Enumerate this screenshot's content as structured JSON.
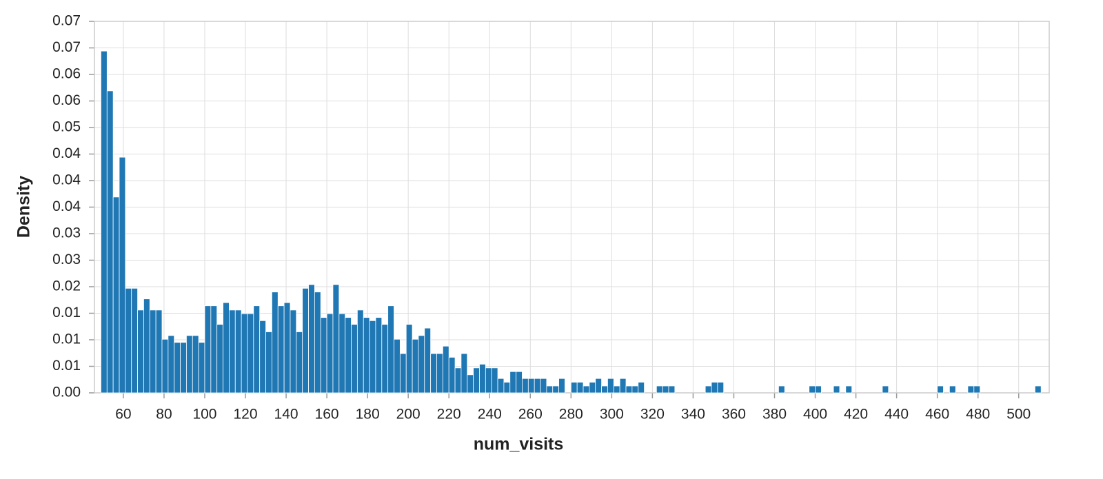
{
  "chart_data": {
    "type": "histogram",
    "x_label": "num_visits",
    "y_label": "Density",
    "color": "#1f77b4",
    "grid": true,
    "xlim": [
      45.8,
      515
    ],
    "ylim": [
      0,
      0.07
    ],
    "xticks": [
      60,
      80,
      100,
      120,
      140,
      160,
      180,
      200,
      220,
      240,
      260,
      280,
      300,
      320,
      340,
      360,
      380,
      400,
      420,
      440,
      460,
      480,
      500
    ],
    "yticks": [
      {
        "value": 0,
        "label": "0.00"
      },
      {
        "value": 0.005,
        "label": "0.01"
      },
      0.01,
      {
        "value": 0.015,
        "label": "0.01"
      },
      0.02,
      {
        "value": 0.025,
        "label": "0.03"
      },
      0.03,
      {
        "value": 0.035,
        "label": "0.04"
      },
      0.04,
      {
        "value": 0.045,
        "label": "0.04"
      },
      0.05,
      {
        "value": 0.055,
        "label": "0.06"
      },
      0.06,
      {
        "value": 0.065,
        "label": "0.07"
      },
      0.07
    ],
    "bins": [
      49,
      52,
      55,
      58,
      61,
      64,
      67,
      70,
      73,
      76,
      79,
      82,
      85,
      88,
      91,
      94,
      97,
      100,
      103,
      106,
      109,
      112,
      115,
      118,
      121,
      124,
      127,
      130,
      133,
      136,
      139,
      142,
      145,
      148,
      151,
      154,
      157,
      160,
      163,
      166,
      169,
      172,
      175,
      178,
      181,
      184,
      187,
      190,
      193,
      196,
      199,
      202,
      205,
      208,
      211,
      214,
      217,
      220,
      223,
      226,
      229,
      232,
      235,
      238,
      241,
      244,
      247,
      250,
      253,
      256,
      259,
      262,
      265,
      268,
      271,
      274,
      277,
      280,
      283,
      286,
      289,
      292,
      295,
      298,
      301,
      304,
      307,
      310,
      313,
      316,
      319,
      322,
      325,
      328,
      331,
      334,
      337,
      340,
      343,
      346,
      349,
      352,
      355,
      358,
      361,
      364,
      367,
      370,
      373,
      376,
      379,
      382,
      385,
      388,
      391,
      394,
      397,
      400,
      403,
      406,
      409,
      412,
      415,
      418,
      421,
      424,
      427,
      430,
      433,
      436,
      439,
      442,
      445,
      448,
      451,
      454,
      457,
      460,
      463,
      466,
      469,
      472,
      475,
      478,
      481,
      484,
      487,
      490,
      493,
      496,
      499,
      502,
      505,
      508,
      511
    ],
    "values": [
      0.0644,
      0.0569,
      0.0369,
      0.0444,
      0.0197,
      0.0197,
      0.0156,
      0.0177,
      0.0156,
      0.0156,
      0.0101,
      0.0108,
      0.0095,
      0.0095,
      0.0108,
      0.0108,
      0.0095,
      0.0164,
      0.0164,
      0.0129,
      0.017,
      0.0156,
      0.0156,
      0.0149,
      0.0149,
      0.0164,
      0.0136,
      0.0115,
      0.019,
      0.0164,
      0.017,
      0.0156,
      0.0115,
      0.0197,
      0.0204,
      0.019,
      0.0142,
      0.0149,
      0.0204,
      0.0149,
      0.0142,
      0.0129,
      0.0156,
      0.0142,
      0.0136,
      0.0142,
      0.0129,
      0.0164,
      0.0101,
      0.0074,
      0.0129,
      0.0101,
      0.0108,
      0.0122,
      0.0074,
      0.0074,
      0.0088,
      0.0067,
      0.0047,
      0.0074,
      0.0034,
      0.0047,
      0.0054,
      0.0047,
      0.0047,
      0.0027,
      0.002,
      0.004,
      0.004,
      0.0027,
      0.0027,
      0.0027,
      0.0027,
      0.0013,
      0.0013,
      0.0027,
      0,
      0.002,
      0.002,
      0.0013,
      0.002,
      0.0027,
      0.0013,
      0.0027,
      0.0013,
      0.0027,
      0.0013,
      0.0013,
      0.002,
      0,
      0,
      0.0013,
      0.0013,
      0.0013,
      0,
      0,
      0,
      0,
      0,
      0.0013,
      0.002,
      0.002,
      0,
      0,
      0,
      0,
      0,
      0,
      0,
      0,
      0,
      0.0013,
      0,
      0,
      0,
      0,
      0.0013,
      0.0013,
      0,
      0,
      0.0013,
      0,
      0.0013,
      0,
      0,
      0,
      0,
      0,
      0.0013,
      0,
      0,
      0,
      0,
      0,
      0,
      0,
      0,
      0.0013,
      0,
      0.0013,
      0,
      0,
      0.0013,
      0.0013,
      0,
      0,
      0,
      0,
      0,
      0,
      0,
      0,
      0,
      0.0013
    ]
  }
}
